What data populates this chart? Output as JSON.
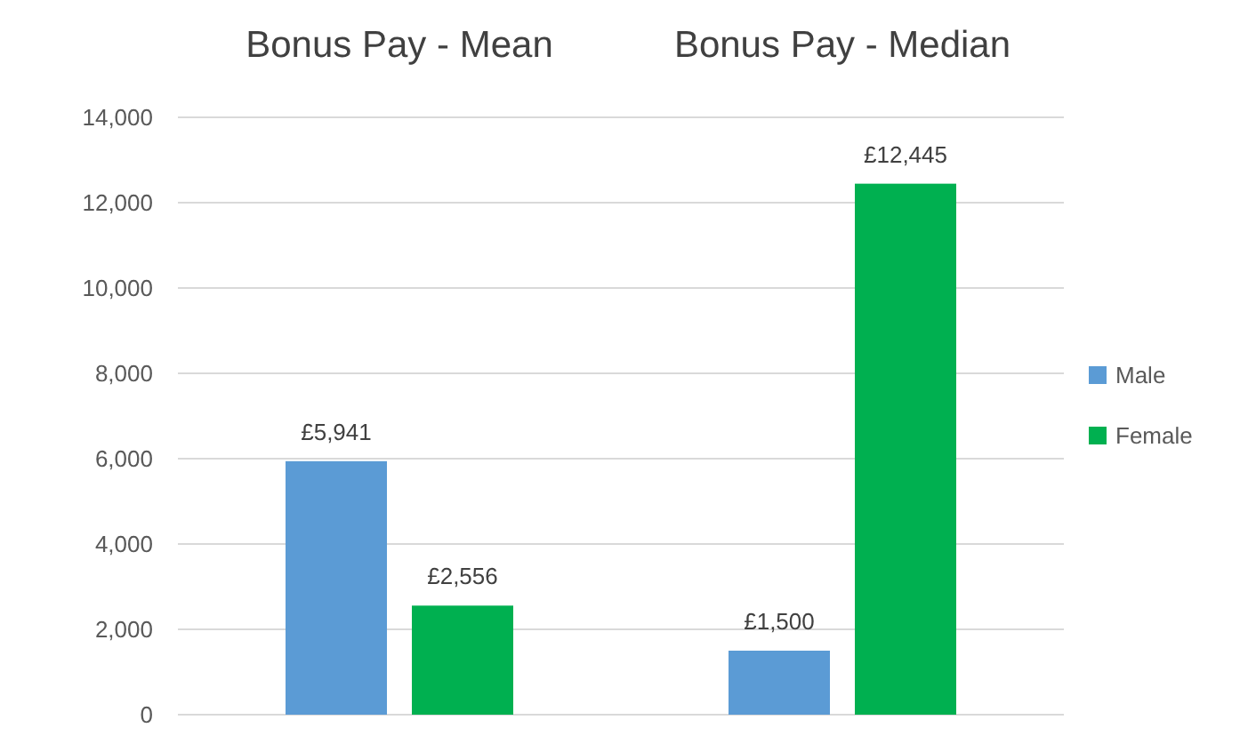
{
  "chart_data": {
    "type": "bar",
    "categories": [
      "Bonus Pay - Mean",
      "Bonus Pay - Median"
    ],
    "series": [
      {
        "name": "Male",
        "color": "#5b9bd5",
        "values": [
          5941,
          1500
        ],
        "value_labels": [
          "£5,941",
          "£1,500"
        ]
      },
      {
        "name": "Female",
        "color": "#00b050",
        "values": [
          2556,
          12445
        ],
        "value_labels": [
          "£2,556",
          "£12,445"
        ]
      }
    ],
    "ylim": [
      0,
      14000
    ],
    "yticks": [
      {
        "value": 0,
        "label": "0"
      },
      {
        "value": 2000,
        "label": "2,000"
      },
      {
        "value": 4000,
        "label": "4,000"
      },
      {
        "value": 6000,
        "label": "6,000"
      },
      {
        "value": 8000,
        "label": "8,000"
      },
      {
        "value": 10000,
        "label": "10,000"
      },
      {
        "value": 12000,
        "label": "12,000"
      },
      {
        "value": 14000,
        "label": "14,000"
      }
    ],
    "grid": "y",
    "legend": "right"
  }
}
